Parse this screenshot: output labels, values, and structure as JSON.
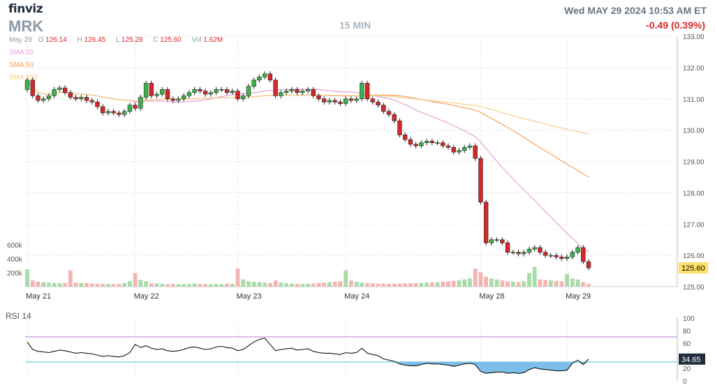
{
  "header": {
    "logo": "finviz",
    "ticker": "MRK",
    "timeframe": "15 MIN",
    "datetime": "Wed MAY 29 2024 10:53 AM ET",
    "change": "-0.49 (0.39%)"
  },
  "ohlc": {
    "date": "May 29",
    "open_label": "O",
    "open": "126.14",
    "high_label": "H",
    "high": "126.45",
    "low_label": "L",
    "low": "125.28",
    "close_label": "C",
    "close": "125.60",
    "vol_label": "Vol",
    "vol": "1.62M"
  },
  "sma_legend": [
    {
      "label": "SMA 20",
      "color": "#e8a0d8"
    },
    {
      "label": "SMA 50",
      "color": "#f5a05a"
    },
    {
      "label": "SMA 200",
      "color": "#f5cf8a"
    }
  ],
  "colors": {
    "up": "#3cb54a",
    "down": "#d62828",
    "vol_up": "#a8dba8",
    "vol_down": "#f4b4b4",
    "rsi_fill": "#7cbfea"
  },
  "rsi_label": "RSI 14",
  "last_price_tag": "125.60",
  "rsi_value_tag": "34.65",
  "chart_data": {
    "type": "candlestick",
    "y_axis_ticks": [
      "133.00",
      "132.00",
      "131.00",
      "130.00",
      "129.00",
      "128.00",
      "127.00",
      "126.00",
      "125.00"
    ],
    "ylim": [
      125,
      133
    ],
    "volume_axis_ticks": [
      "600k",
      "400k",
      "200k"
    ],
    "x_tick_labels": [
      "May 21",
      "May 22",
      "May 23",
      "May 24",
      "May 28",
      "May 29"
    ],
    "rsi_axis_ticks": [
      "100",
      "80",
      "60",
      "40",
      "20",
      "0"
    ],
    "rsi_levels": [
      70,
      30
    ],
    "closes": [
      131.6,
      131.1,
      130.95,
      131.0,
      131.1,
      131.3,
      131.35,
      131.2,
      131.05,
      131.0,
      131.05,
      130.95,
      130.9,
      130.75,
      130.55,
      130.6,
      130.55,
      130.5,
      130.6,
      130.8,
      130.7,
      131.05,
      131.5,
      131.1,
      131.15,
      131.3,
      131.0,
      130.95,
      131.0,
      131.1,
      131.2,
      131.3,
      131.25,
      131.15,
      131.2,
      131.3,
      131.3,
      131.2,
      131.25,
      131.0,
      131.1,
      131.4,
      131.6,
      131.7,
      131.8,
      131.6,
      131.1,
      131.2,
      131.25,
      131.3,
      131.2,
      131.25,
      131.3,
      131.1,
      131.0,
      130.9,
      130.95,
      130.9,
      130.85,
      131.0,
      130.95,
      131.0,
      131.5,
      131.0,
      130.9,
      130.8,
      130.6,
      130.5,
      130.3,
      129.85,
      129.7,
      129.55,
      129.5,
      129.6,
      129.65,
      129.6,
      129.6,
      129.5,
      129.45,
      129.3,
      129.35,
      129.45,
      129.5,
      129.1,
      127.7,
      126.4,
      126.5,
      126.5,
      126.4,
      126.1,
      126.1,
      126.05,
      126.1,
      126.2,
      126.25,
      126.1,
      126.0,
      126.0,
      125.95,
      125.9,
      125.95,
      126.1,
      126.25,
      125.8,
      125.6
    ],
    "volumes": [
      190,
      70,
      55,
      50,
      45,
      40,
      38,
      40,
      180,
      45,
      40,
      38,
      35,
      32,
      30,
      30,
      28,
      30,
      40,
      60,
      150,
      75,
      60,
      40,
      35,
      30,
      28,
      30,
      25,
      27,
      30,
      35,
      30,
      28,
      25,
      30,
      28,
      35,
      30,
      200,
      80,
      60,
      55,
      50,
      45,
      40,
      70,
      45,
      38,
      35,
      30,
      30,
      32,
      35,
      40,
      45,
      50,
      55,
      60,
      180,
      70,
      55,
      45,
      40,
      38,
      35,
      35,
      33,
      32,
      34,
      36,
      38,
      40,
      42,
      45,
      48,
      50,
      55,
      60,
      65,
      70,
      80,
      90,
      200,
      160,
      110,
      90,
      80,
      70,
      60,
      55,
      50,
      60,
      150,
      220,
      80,
      75,
      70,
      65,
      60,
      140,
      90,
      80,
      50,
      30
    ],
    "rsi": [
      62,
      50,
      47,
      46,
      45,
      47,
      49,
      48,
      46,
      44,
      45,
      44,
      43,
      41,
      39,
      40,
      39,
      38,
      40,
      45,
      58,
      53,
      56,
      52,
      50,
      51,
      48,
      47,
      48,
      50,
      53,
      54,
      52,
      50,
      51,
      54,
      55,
      53,
      52,
      48,
      50,
      56,
      62,
      66,
      68,
      58,
      48,
      50,
      51,
      52,
      49,
      50,
      51,
      47,
      45,
      44,
      44,
      43,
      42,
      45,
      44,
      45,
      52,
      44,
      42,
      40,
      35,
      33,
      31,
      27,
      25,
      24,
      24,
      26,
      28,
      27,
      27,
      26,
      25,
      23,
      25,
      27,
      28,
      26,
      15,
      12,
      13,
      14,
      14,
      12,
      13,
      12,
      13,
      18,
      21,
      19,
      18,
      17,
      16,
      16,
      17,
      28,
      33,
      26,
      34.65
    ]
  }
}
